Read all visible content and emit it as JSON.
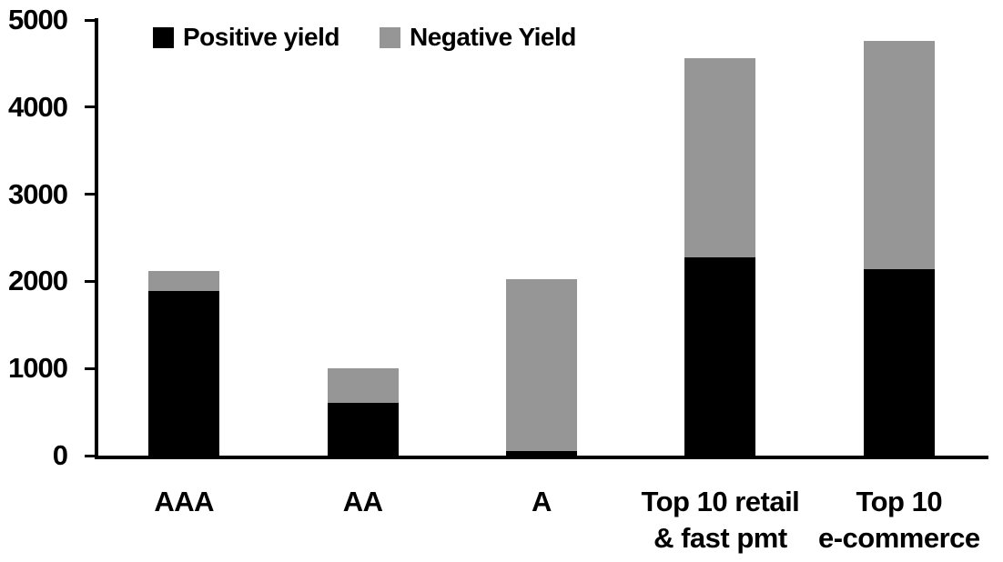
{
  "chart_data": {
    "type": "bar",
    "stacked": true,
    "title": "",
    "categories": [
      "AAA",
      "AA",
      "A",
      "Top 10 retail\n& fast pmt",
      "Top 10\ne-commerce"
    ],
    "series": [
      {
        "name": "Positive yield",
        "color": "#000000",
        "values": [
          1890,
          610,
          50,
          2280,
          2140
        ]
      },
      {
        "name": "Negative Yield",
        "color": "#969696",
        "values": [
          230,
          390,
          1980,
          2280,
          2620
        ]
      }
    ],
    "totals": [
      2120,
      1000,
      2030,
      4560,
      4760
    ],
    "xlabel": "",
    "ylabel": "",
    "ylim": [
      0,
      5000
    ],
    "yticks": [
      0,
      1000,
      2000,
      3000,
      4000,
      5000
    ],
    "grid": false,
    "legend_position": "top-left",
    "axis_color": "#000000",
    "background_color": "#ffffff"
  }
}
